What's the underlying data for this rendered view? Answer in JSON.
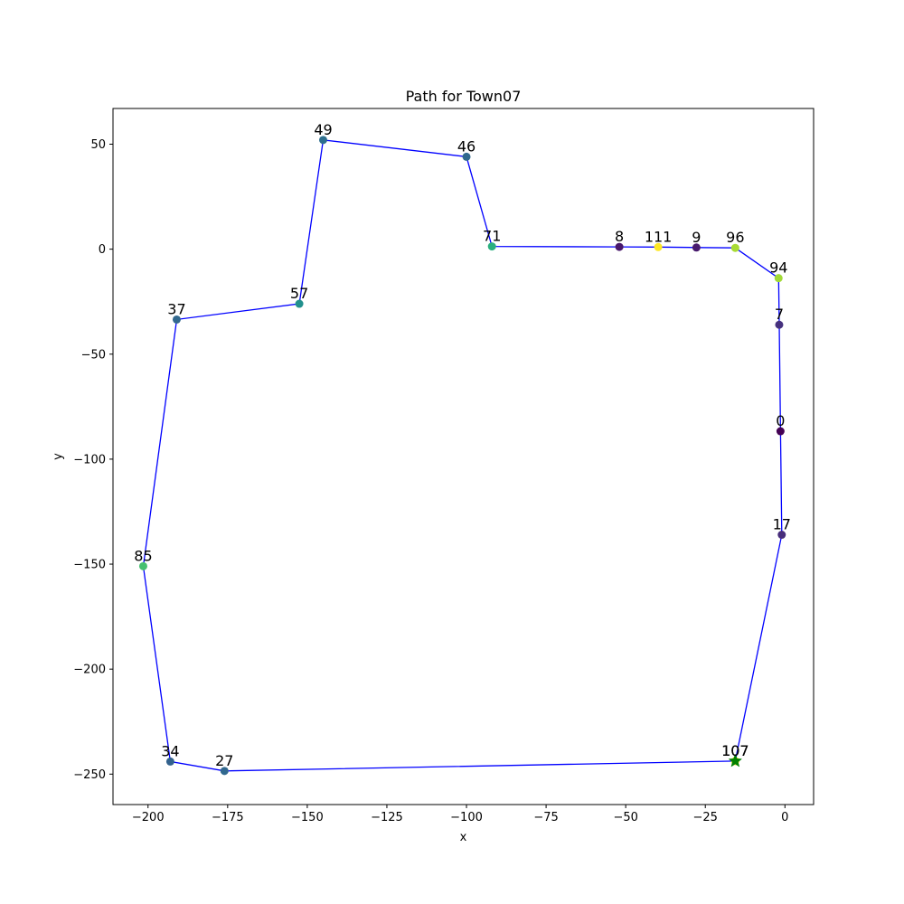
{
  "chart_data": {
    "type": "line",
    "title": "Path for Town07",
    "xlabel": "x",
    "ylabel": "y",
    "xlim": [
      -211,
      9
    ],
    "ylim": [
      -264.5,
      67
    ],
    "xticks": [
      -200,
      -175,
      -150,
      -125,
      -100,
      -75,
      -50,
      -25,
      0
    ],
    "yticks": [
      50,
      0,
      -50,
      -100,
      -150,
      -200,
      -250
    ],
    "xtick_labels": [
      "−200",
      "−175",
      "−150",
      "−125",
      "−100",
      "−75",
      "−50",
      "−25",
      "0"
    ],
    "ytick_labels": [
      "50",
      "0",
      "−50",
      "−100",
      "−150",
      "−200",
      "−250"
    ],
    "grid": false,
    "path_color": "#0000ff",
    "points": [
      {
        "label": "107",
        "x": -15.6,
        "y": -243.8,
        "color": "#fde725"
      },
      {
        "label": "17",
        "x": -1.0,
        "y": -136.0,
        "color": "#472d7b"
      },
      {
        "label": "0",
        "x": -1.4,
        "y": -86.7,
        "color": "#440154"
      },
      {
        "label": "7",
        "x": -1.8,
        "y": -36.0,
        "color": "#46317e"
      },
      {
        "label": "94",
        "x": -2.0,
        "y": -13.8,
        "color": "#a2da37"
      },
      {
        "label": "96",
        "x": -15.6,
        "y": 0.6,
        "color": "#a8db34"
      },
      {
        "label": "9",
        "x": -27.8,
        "y": 0.8,
        "color": "#481a6c"
      },
      {
        "label": "111",
        "x": -39.8,
        "y": 1.0,
        "color": "#fde725"
      },
      {
        "label": "8",
        "x": -52.0,
        "y": 1.1,
        "color": "#48186a"
      },
      {
        "label": "71",
        "x": -92.0,
        "y": 1.3,
        "color": "#2ab07f"
      },
      {
        "label": "46",
        "x": -100.0,
        "y": 44.0,
        "color": "#30698e"
      },
      {
        "label": "49",
        "x": -145.0,
        "y": 52.0,
        "color": "#2e6f8e"
      },
      {
        "label": "57",
        "x": -152.5,
        "y": -26.0,
        "color": "#21908d"
      },
      {
        "label": "37",
        "x": -191.0,
        "y": -33.5,
        "color": "#31688e"
      },
      {
        "label": "85",
        "x": -201.5,
        "y": -151.0,
        "color": "#46c06f"
      },
      {
        "label": "34",
        "x": -193.0,
        "y": -244.0,
        "color": "#33628d"
      },
      {
        "label": "27",
        "x": -176.0,
        "y": -248.5,
        "color": "#31688e"
      },
      {
        "label": "107",
        "x": -15.6,
        "y": -243.8,
        "color": "#fde725"
      }
    ],
    "start_marker": {
      "shape": "star",
      "color": "#008000",
      "x": -15.6,
      "y": -243.8
    }
  }
}
